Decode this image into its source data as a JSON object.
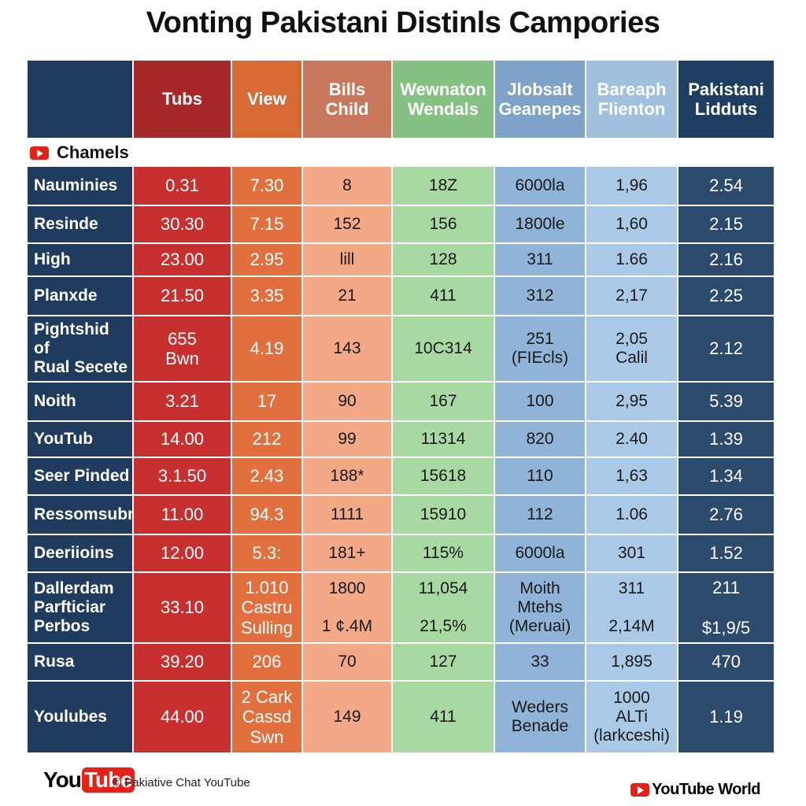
{
  "title": "Vonting Pakistani Distinls Campories",
  "table": {
    "columns": [
      "",
      "Tubs",
      "View",
      "Bills\nChild",
      "Wewnaton\nWendals",
      "Jlobsalt\nGeanepes",
      "Bareaph\nFlienton",
      "Pakistani\nLidduts"
    ],
    "section": "Chamels",
    "rows": [
      [
        "Nauminies",
        "0.31",
        "7.30",
        "8",
        "18Z",
        "6000la",
        "1,96",
        "2.54"
      ],
      [
        "Resinde",
        "30.30",
        "7.15",
        "152",
        "156",
        "1800le",
        "1,60",
        "2.15"
      ],
      [
        "High",
        "23.00",
        "2.95",
        "lill",
        "128",
        "311",
        "1.66",
        "2.16"
      ],
      [
        "Planxde",
        "21.50",
        "3.35",
        "21",
        "411",
        "312",
        "2,17",
        "2.25"
      ],
      [
        "Pightshid\nof\nRual Secete",
        "655\nBwn",
        "4.19",
        "143",
        "10C314",
        "251\n(FIEcls)",
        "2,05\nCalil",
        "2.12"
      ],
      [
        "Noith",
        "3.21",
        "17",
        "90",
        "167",
        "100",
        "2,95",
        "5.39"
      ],
      [
        "YouTub",
        "14.00",
        "212",
        "99",
        "11314",
        "820",
        "2.40",
        "1.39"
      ],
      [
        "Seer Pinded",
        "3.1.50",
        "2.43",
        "188*",
        "15618",
        "110",
        "1,63",
        "1.34"
      ],
      [
        "Ressomsubn",
        "11.00",
        "94.3",
        "1111",
        "15910",
        "112",
        "1.06",
        "2.76"
      ],
      [
        "Deeriioins",
        "12.00",
        "5.3:",
        "181+",
        "115%",
        "6000la",
        "301",
        "1.52"
      ],
      [
        "Dallerdam\nParfticiar\nPerbos",
        "33.10",
        "1.010\nCastru\nSulling",
        "1800\n\n1 ¢.4M",
        "11,054\n\n21,5%",
        "Moith\nMtehs\n(Meruai)",
        "311\n\n2,14M",
        "211\n\n$1,9/5"
      ],
      [
        "Rusa",
        "39.20",
        "206",
        "70",
        "127",
        "33",
        "1,895",
        "470"
      ],
      [
        "Youlubes",
        "44.00",
        "2 Cark\nCassd\nSwn",
        "149",
        "411",
        "Weders\nBenade",
        "1000\nALTi\n(larkceshi)",
        "1.19"
      ]
    ]
  },
  "footer": {
    "logo": [
      "You",
      "Tube"
    ],
    "copyright": "© Pakiative Chat YouTube",
    "brand": "YouTube World"
  }
}
